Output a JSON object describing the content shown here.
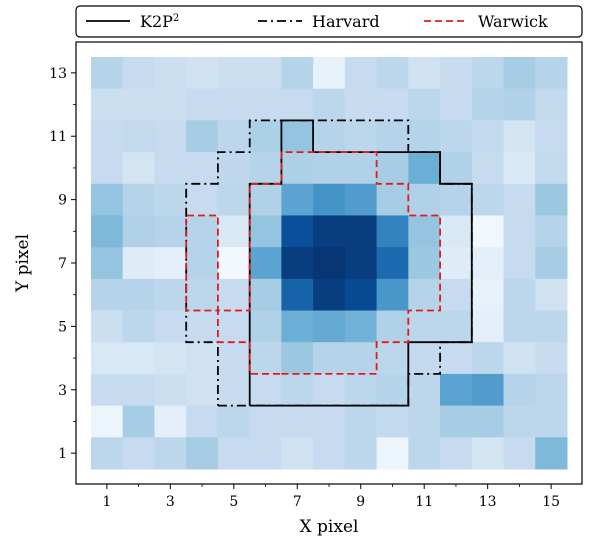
{
  "chart_data": {
    "type": "heatmap",
    "title": "",
    "xlabel": "X pixel",
    "ylabel": "Y pixel",
    "xlim": [
      0.5,
      15.5
    ],
    "ylim": [
      0.5,
      13.5
    ],
    "xticks": [
      1,
      3,
      5,
      7,
      9,
      11,
      13,
      15
    ],
    "yticks": [
      1,
      3,
      5,
      7,
      9,
      11,
      13
    ],
    "x_tick_labels": [
      "1",
      "3",
      "5",
      "7",
      "9",
      "11",
      "13",
      "15"
    ],
    "y_tick_labels": [
      "1",
      "3",
      "5",
      "7",
      "9",
      "11",
      "13"
    ],
    "colormap": "Blues",
    "grid": false,
    "legend_position": "top (outside, above plot)",
    "intensity_rows_top_to_bottom_y13_to_y1": [
      [
        0.3,
        0.25,
        0.22,
        0.2,
        0.22,
        0.22,
        0.3,
        0.08,
        0.25,
        0.28,
        0.2,
        0.24,
        0.28,
        0.35,
        0.3
      ],
      [
        0.22,
        0.22,
        0.22,
        0.25,
        0.25,
        0.25,
        0.25,
        0.28,
        0.24,
        0.25,
        0.28,
        0.25,
        0.3,
        0.32,
        0.26
      ],
      [
        0.25,
        0.26,
        0.25,
        0.35,
        0.28,
        0.33,
        0.4,
        0.3,
        0.28,
        0.3,
        0.3,
        0.28,
        0.26,
        0.18,
        0.25
      ],
      [
        0.25,
        0.18,
        0.25,
        0.25,
        0.27,
        0.3,
        0.33,
        0.32,
        0.32,
        0.35,
        0.5,
        0.32,
        0.25,
        0.15,
        0.26
      ],
      [
        0.4,
        0.3,
        0.28,
        0.25,
        0.28,
        0.32,
        0.55,
        0.62,
        0.58,
        0.35,
        0.32,
        0.3,
        0.28,
        0.25,
        0.38
      ],
      [
        0.45,
        0.32,
        0.3,
        0.3,
        0.15,
        0.4,
        0.88,
        0.95,
        0.95,
        0.68,
        0.4,
        0.15,
        0.03,
        0.25,
        0.3
      ],
      [
        0.4,
        0.12,
        0.1,
        0.3,
        0.02,
        0.55,
        0.95,
        0.98,
        0.95,
        0.78,
        0.38,
        0.12,
        0.1,
        0.25,
        0.35
      ],
      [
        0.3,
        0.3,
        0.28,
        0.28,
        0.25,
        0.35,
        0.8,
        0.95,
        0.9,
        0.6,
        0.3,
        0.25,
        0.08,
        0.28,
        0.2
      ],
      [
        0.22,
        0.28,
        0.25,
        0.25,
        0.25,
        0.32,
        0.5,
        0.52,
        0.48,
        0.32,
        0.28,
        0.28,
        0.1,
        0.28,
        0.28
      ],
      [
        0.15,
        0.15,
        0.18,
        0.2,
        0.25,
        0.28,
        0.38,
        0.3,
        0.3,
        0.28,
        0.26,
        0.25,
        0.28,
        0.2,
        0.24
      ],
      [
        0.25,
        0.25,
        0.22,
        0.2,
        0.24,
        0.25,
        0.28,
        0.25,
        0.28,
        0.3,
        0.28,
        0.55,
        0.58,
        0.3,
        0.28
      ],
      [
        0.05,
        0.35,
        0.1,
        0.25,
        0.28,
        0.25,
        0.25,
        0.25,
        0.28,
        0.26,
        0.28,
        0.35,
        0.35,
        0.28,
        0.28
      ],
      [
        0.28,
        0.25,
        0.28,
        0.35,
        0.25,
        0.25,
        0.2,
        0.25,
        0.28,
        0.05,
        0.28,
        0.25,
        0.18,
        0.25,
        0.45
      ]
    ],
    "series": [
      {
        "name": "K2P²",
        "style": "solid",
        "color": "#000000",
        "points": [
          [
            5.5,
            2.5
          ],
          [
            10.5,
            2.5
          ],
          [
            10.5,
            4.5
          ],
          [
            12.5,
            4.5
          ],
          [
            12.5,
            9.5
          ],
          [
            11.5,
            9.5
          ],
          [
            11.5,
            10.5
          ],
          [
            7.5,
            10.5
          ],
          [
            7.5,
            11.5
          ],
          [
            6.5,
            11.5
          ],
          [
            6.5,
            9.5
          ],
          [
            5.5,
            9.5
          ],
          [
            5.5,
            2.5
          ]
        ]
      },
      {
        "name": "Harvard",
        "style": "dashdot",
        "color": "#000000",
        "points": [
          [
            4.5,
            2.5
          ],
          [
            10.5,
            2.5
          ],
          [
            10.5,
            3.5
          ],
          [
            11.5,
            3.5
          ],
          [
            11.5,
            4.5
          ],
          [
            12.5,
            4.5
          ],
          [
            12.5,
            9.5
          ],
          [
            11.5,
            9.5
          ],
          [
            11.5,
            10.5
          ],
          [
            10.5,
            10.5
          ],
          [
            10.5,
            11.5
          ],
          [
            5.5,
            11.5
          ],
          [
            5.5,
            10.5
          ],
          [
            4.5,
            10.5
          ],
          [
            4.5,
            9.5
          ],
          [
            3.5,
            9.5
          ],
          [
            3.5,
            4.5
          ],
          [
            4.5,
            4.5
          ],
          [
            4.5,
            2.5
          ]
        ]
      },
      {
        "name": "Warwick",
        "style": "dashed",
        "color": "#e31a1c",
        "points": [
          [
            6.5,
            3.5
          ],
          [
            9.5,
            3.5
          ],
          [
            9.5,
            4.5
          ],
          [
            10.5,
            4.5
          ],
          [
            10.5,
            5.5
          ],
          [
            11.5,
            5.5
          ],
          [
            11.5,
            8.5
          ],
          [
            10.5,
            8.5
          ],
          [
            10.5,
            9.5
          ],
          [
            9.5,
            9.5
          ],
          [
            9.5,
            10.5
          ],
          [
            6.5,
            10.5
          ],
          [
            6.5,
            9.5
          ],
          [
            5.5,
            9.5
          ],
          [
            5.5,
            5.5
          ],
          [
            4.5,
            5.5
          ],
          [
            4.5,
            8.5
          ],
          [
            3.5,
            8.5
          ],
          [
            3.5,
            5.5
          ],
          [
            4.5,
            5.5
          ],
          [
            4.5,
            4.5
          ],
          [
            5.5,
            4.5
          ],
          [
            5.5,
            3.5
          ],
          [
            6.5,
            3.5
          ]
        ]
      }
    ],
    "legend": [
      {
        "label": "K2P",
        "sup": "2",
        "style": "solid",
        "color": "#000000"
      },
      {
        "label": "Harvard",
        "sup": "",
        "style": "dashdot",
        "color": "#000000"
      },
      {
        "label": "Warwick",
        "sup": "",
        "style": "dashed",
        "color": "#e31a1c"
      }
    ]
  }
}
